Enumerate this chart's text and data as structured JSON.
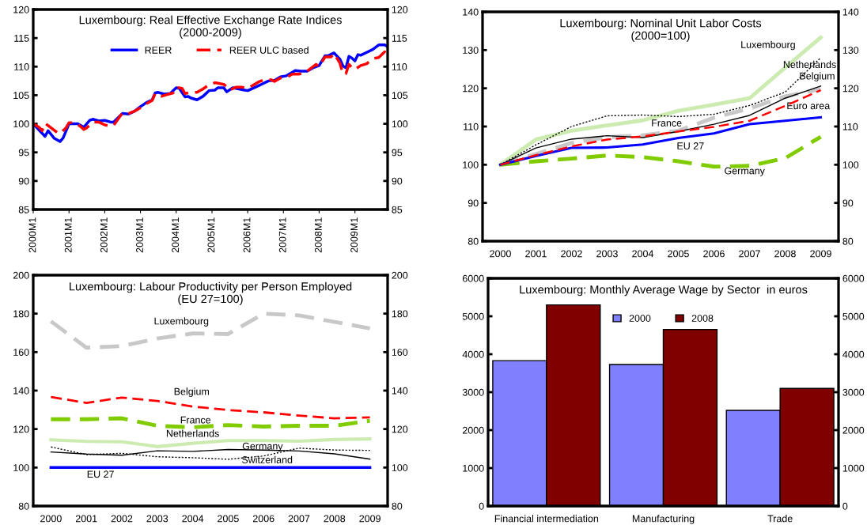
{
  "chart_data": [
    {
      "type": "line",
      "title": "Luxembourg: Real Effective Exchange Rate Indices",
      "subtitle": "(2000-2009)",
      "ylim": [
        85,
        120
      ],
      "yticks": [
        85,
        90,
        95,
        100,
        105,
        110,
        115,
        120
      ],
      "y2lim": [
        85,
        120
      ],
      "y2ticks": [
        85,
        90,
        95,
        100,
        105,
        110,
        115,
        120
      ],
      "xlim": [
        "2000-01",
        "2009-12"
      ],
      "xticks": [
        {
          "value": "2000-01",
          "label": "2000M1"
        },
        {
          "value": "2001-01",
          "label": "2001M1"
        },
        {
          "value": "2002-01",
          "label": "2002M1"
        },
        {
          "value": "2003-01",
          "label": "2003M1"
        },
        {
          "value": "2004-01",
          "label": "2004M1"
        },
        {
          "value": "2005-01",
          "label": "2005M1"
        },
        {
          "value": "2006-01",
          "label": "2006M1"
        },
        {
          "value": "2007-01",
          "label": "2007M1"
        },
        {
          "value": "2008-01",
          "label": "2008M1"
        },
        {
          "value": "2009-01",
          "label": "2009M1"
        }
      ],
      "legend": "top",
      "grid": false,
      "series": [
        {
          "name": "REER",
          "color": "#0000ff",
          "line_style": "solid",
          "x": [
            "2000-01",
            "2000-03",
            "2000-05",
            "2000-06",
            "2000-08",
            "2000-10",
            "2000-11",
            "2001-01",
            "2001-04",
            "2001-06",
            "2001-08",
            "2001-09",
            "2001-11",
            "2002-01",
            "2002-03",
            "2002-04",
            "2002-07",
            "2002-09",
            "2002-11",
            "2003-01",
            "2003-03",
            "2003-05",
            "2003-06",
            "2003-07",
            "2003-09",
            "2003-11",
            "2004-01",
            "2004-02",
            "2004-04",
            "2004-05",
            "2004-06",
            "2004-08",
            "2004-10",
            "2004-12",
            "2005-02",
            "2005-03",
            "2005-05",
            "2005-06",
            "2005-08",
            "2005-10",
            "2005-12",
            "2006-01",
            "2006-04",
            "2006-06",
            "2006-08",
            "2006-10",
            "2006-12",
            "2007-02",
            "2007-04",
            "2007-05",
            "2007-07",
            "2007-09",
            "2007-11",
            "2008-01",
            "2008-03",
            "2008-04",
            "2008-06",
            "2008-08",
            "2008-09",
            "2008-10",
            "2008-11",
            "2008-12",
            "2009-01",
            "2009-02",
            "2009-03",
            "2009-05",
            "2009-07",
            "2009-09",
            "2009-11",
            "2009-12"
          ],
          "values": [
            100,
            98.9,
            97.8,
            98.8,
            97.5,
            96.9,
            97.5,
            100,
            100,
            99.4,
            100.6,
            100.8,
            100.5,
            100.6,
            100.3,
            100.3,
            101.8,
            101.7,
            102.2,
            103.0,
            103.7,
            104.2,
            105.4,
            105.5,
            105.2,
            105.3,
            106.3,
            106.2,
            104.7,
            104.8,
            104.5,
            104.2,
            104.8,
            105.8,
            105.9,
            106.3,
            106.3,
            105.6,
            106.3,
            106.1,
            105.9,
            105.8,
            106.5,
            107.0,
            107.5,
            107.6,
            108.2,
            108.4,
            109.0,
            109.3,
            109.2,
            109.2,
            109.8,
            110.2,
            111.9,
            111.9,
            112.4,
            111.3,
            110.1,
            109.8,
            111.8,
            111.5,
            111.0,
            112.1,
            112.0,
            112.5,
            113.0,
            113.8,
            113.8,
            113.5
          ]
        },
        {
          "name": "REER ULC based",
          "color": "#ff0000",
          "line_style": "dashed",
          "x": [
            "2000-01",
            "2000-03",
            "2000-04",
            "2000-05",
            "2000-07",
            "2000-09",
            "2000-10",
            "2000-12",
            "2001-01",
            "2001-03",
            "2001-05",
            "2001-06",
            "2001-07",
            "2001-09",
            "2001-11",
            "2002-01",
            "2002-03",
            "2002-04",
            "2002-06",
            "2002-07",
            "2002-09",
            "2002-11",
            "2003-01",
            "2003-03",
            "2003-05",
            "2003-06",
            "2003-08",
            "2003-10",
            "2003-12",
            "2004-01",
            "2004-03",
            "2004-04",
            "2004-06",
            "2004-08",
            "2004-10",
            "2004-12",
            "2005-02",
            "2005-04",
            "2005-05",
            "2005-06",
            "2005-07",
            "2005-09",
            "2005-11",
            "2006-01",
            "2006-03",
            "2006-05",
            "2006-07",
            "2006-09",
            "2006-10",
            "2006-12",
            "2007-02",
            "2007-04",
            "2007-06",
            "2007-08",
            "2007-10",
            "2007-12",
            "2008-01",
            "2008-03",
            "2008-05",
            "2008-06",
            "2008-08",
            "2008-09",
            "2008-10",
            "2008-11",
            "2008-12",
            "2009-01",
            "2009-03",
            "2009-05",
            "2009-07",
            "2009-09",
            "2009-11",
            "2009-12"
          ],
          "values": [
            100,
            99.4,
            98.8,
            100.1,
            99.3,
            98.5,
            98.3,
            99.3,
            100.2,
            100.2,
            99.5,
            99.0,
            99.3,
            100.3,
            100.3,
            99.8,
            99.6,
            99.7,
            101.2,
            101.9,
            101.8,
            102.2,
            102.8,
            103.5,
            104.1,
            105.3,
            104.8,
            105.1,
            105.4,
            106.4,
            106.2,
            105.3,
            105.5,
            105.5,
            106.1,
            106.8,
            107.2,
            107.0,
            106.9,
            106.5,
            105.9,
            106.4,
            106.4,
            106.2,
            106.8,
            107.4,
            107.8,
            107.7,
            107.4,
            108.0,
            108.1,
            108.7,
            108.7,
            108.8,
            109.6,
            110.4,
            110.0,
            111.7,
            111.7,
            112.3,
            110.6,
            108.7,
            108.8,
            110.4,
            109.8,
            109.5,
            110.2,
            110.5,
            111.4,
            111.6,
            112.6,
            112.0
          ]
        }
      ]
    },
    {
      "type": "line",
      "title": "Luxembourg: Nominal Unit Labor Costs",
      "subtitle": "(2000=100)",
      "categories": [
        "2000",
        "2001",
        "2002",
        "2003",
        "2004",
        "2005",
        "2006",
        "2007",
        "2008",
        "2009"
      ],
      "ylim": [
        80,
        140
      ],
      "yticks": [
        80,
        90,
        100,
        110,
        120,
        130,
        140
      ],
      "y2lim": [
        80,
        140
      ],
      "y2ticks": [
        80,
        90,
        100,
        110,
        120,
        130,
        140
      ],
      "legend": false,
      "grid": false,
      "series": [
        {
          "name": "Luxembourg",
          "color": "#ccebb0",
          "line_style": "solid",
          "values": [
            100,
            106.6,
            108.9,
            110.3,
            111.6,
            114.1,
            115.7,
            117.4,
            125.4,
            133.3
          ]
        },
        {
          "name": "Netherlands",
          "color": "#000000",
          "line_style": "dotted",
          "values": [
            100,
            105.2,
            110.0,
            112.8,
            113.0,
            112.6,
            113.2,
            115.5,
            119.0,
            128.0
          ]
        },
        {
          "name": "Belgium",
          "color": "#000000",
          "line_style": "solid",
          "values": [
            100,
            104.4,
            106.7,
            107.6,
            107.1,
            108.7,
            110.6,
            112.9,
            117.4,
            120.6
          ]
        },
        {
          "name": "France",
          "color": "#c8c8c8",
          "line_style": "dashed",
          "values": [
            100,
            102.8,
            105.7,
            107.2,
            107.7,
            108.9,
            112.3,
            114.7,
            117.9,
            119.8
          ]
        },
        {
          "name": "Euro area",
          "color": "#ff0000",
          "line_style": "dashed",
          "values": [
            100,
            102.5,
            104.8,
            106.6,
            107.4,
            108.7,
            109.9,
            111.5,
            115.4,
            119.5
          ]
        },
        {
          "name": "EU 27",
          "color": "#0000ff",
          "line_style": "solid",
          "values": [
            100,
            102.3,
            104.4,
            104.5,
            105.3,
            107.0,
            108.2,
            110.6,
            111.5,
            112.4
          ]
        },
        {
          "name": "Germany",
          "color": "#80cc00",
          "line_style": "dashed",
          "values": [
            100,
            100.9,
            101.6,
            102.4,
            102.0,
            100.9,
            99.5,
            99.7,
            101.7,
            107.3
          ]
        }
      ]
    },
    {
      "type": "line",
      "title": "Luxembourg: Labour Productivity per Person Employed",
      "subtitle": "(EU 27=100)",
      "categories": [
        "2000",
        "2001",
        "2002",
        "2003",
        "2004",
        "2005",
        "2006",
        "2007",
        "2008",
        "2009"
      ],
      "ylim": [
        80,
        200
      ],
      "yticks": [
        80,
        100,
        120,
        140,
        160,
        180,
        200
      ],
      "y2lim": [
        80,
        200
      ],
      "y2ticks": [
        80,
        100,
        120,
        140,
        160,
        180,
        200
      ],
      "legend": false,
      "grid": false,
      "series": [
        {
          "name": "Luxembourg",
          "color": "#c8c8c8",
          "line_style": "dashed",
          "values": [
            176,
            162.3,
            163.1,
            167.1,
            169.7,
            169.4,
            180,
            179.1,
            175.7,
            172.3
          ]
        },
        {
          "name": "Belgium",
          "color": "#ff0000",
          "line_style": "dashed",
          "values": [
            136.7,
            133.6,
            136.4,
            134.6,
            131.7,
            129.9,
            128.7,
            127,
            125.6,
            126.1
          ]
        },
        {
          "name": "France",
          "color": "#80cc00",
          "line_style": "dashed",
          "values": [
            125.1,
            125.1,
            125.6,
            121.7,
            120.9,
            122.1,
            121.3,
            121.7,
            121.7,
            124.3
          ]
        },
        {
          "name": "Netherlands",
          "color": "#ccebb0",
          "line_style": "solid",
          "values": [
            114.4,
            113.6,
            113.4,
            110.9,
            112.6,
            114,
            114,
            113.7,
            114.6,
            114.9
          ]
        },
        {
          "name": "Germany",
          "color": "#000000",
          "line_style": "solid",
          "values": [
            108.1,
            107,
            106.4,
            108.7,
            108.4,
            109.4,
            109.1,
            108.6,
            107.1,
            104.4
          ]
        },
        {
          "name": "Switzerland",
          "color": "#000000",
          "line_style": "dotted",
          "values": [
            110.7,
            106.7,
            107.4,
            105.6,
            105.1,
            104.3,
            106,
            110.1,
            109.1,
            108.9
          ]
        },
        {
          "name": "EU 27",
          "color": "#0000ff",
          "line_style": "solid",
          "values": [
            100,
            100,
            100,
            100,
            100,
            100,
            100,
            100,
            100,
            100
          ]
        }
      ]
    },
    {
      "type": "bar",
      "title": "Luxembourg: Monthly Average Wage by Sector  in euros",
      "categories": [
        "Financial intermediation",
        "Manufacturing",
        "Trade"
      ],
      "ylim": [
        0,
        6000
      ],
      "yticks": [
        0,
        1000,
        2000,
        3000,
        4000,
        5000,
        6000
      ],
      "y2lim": [
        0,
        6000
      ],
      "y2ticks": [
        0,
        1000,
        2000,
        3000,
        4000,
        5000,
        6000
      ],
      "legend": "top",
      "grid": false,
      "series": [
        {
          "name": "2000",
          "color": "#8080ff",
          "values": [
            3830,
            3730,
            2520
          ]
        },
        {
          "name": "2008",
          "color": "#800000",
          "values": [
            5300,
            4650,
            3100
          ]
        }
      ]
    }
  ]
}
